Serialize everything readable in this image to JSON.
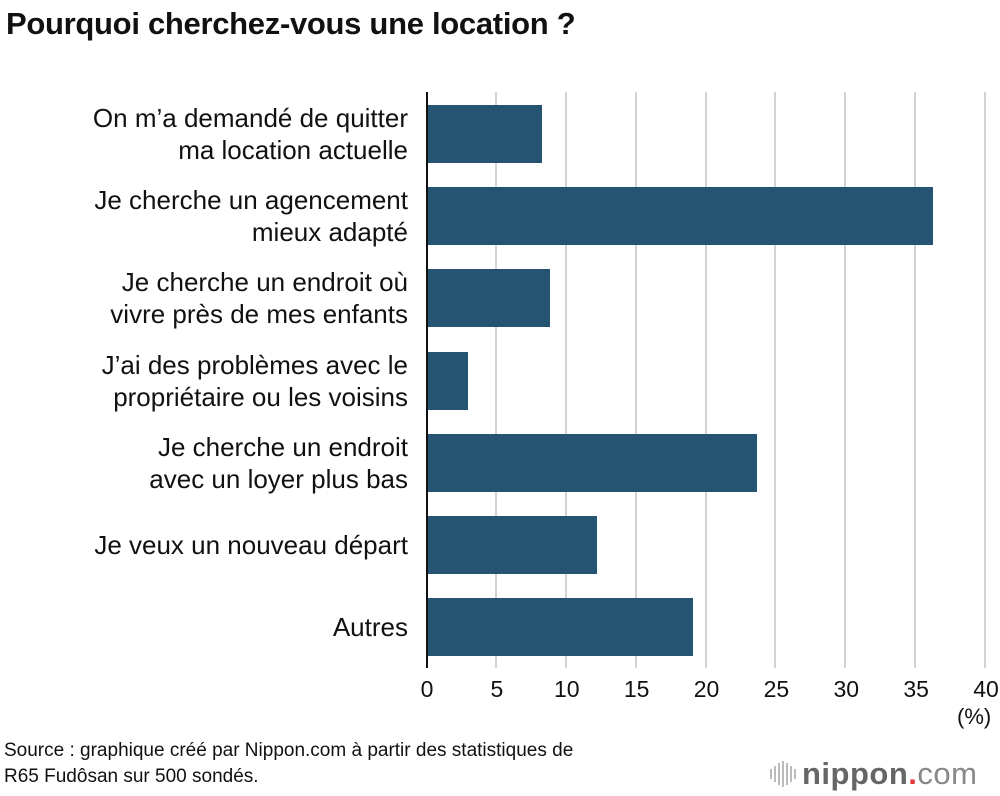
{
  "title": "Pourquoi cherchez-vous une location ?",
  "source_line1": "Source : graphique créé par Nippon.com à partir des statistiques de",
  "source_line2": "R65 Fudôsan sur 500 sondés.",
  "logo": {
    "word": "nippon",
    "dot": ".",
    "com": "com"
  },
  "colors": {
    "bar": "#245472",
    "grid": "#d3d3d3",
    "logo_dot": "#e53935"
  },
  "chart_data": {
    "type": "bar",
    "orientation": "horizontal",
    "title": "Pourquoi cherchez-vous une location ?",
    "categories": [
      "On m’a demandé de quitter ma location actuelle",
      "Je cherche un agencement mieux adapté",
      "Je cherche un endroit où vivre près de mes enfants",
      "J’ai des problèmes avec le propriétaire ou les voisins",
      "Je cherche un endroit avec un loyer plus bas",
      "Je veux un nouveau départ",
      "Autres"
    ],
    "category_lines": [
      [
        "On m’a demandé de quitter",
        "ma location actuelle"
      ],
      [
        "Je cherche un agencement",
        "mieux adapté"
      ],
      [
        "Je cherche un endroit où",
        "vivre près de mes enfants"
      ],
      [
        "J’ai des problèmes avec le",
        "propriétaire ou les voisins"
      ],
      [
        "Je cherche un endroit",
        "avec un loyer plus bas"
      ],
      [
        "Je veux un nouveau départ"
      ],
      [
        "Autres"
      ]
    ],
    "values": [
      8.2,
      36.2,
      8.8,
      2.9,
      23.6,
      12.2,
      19.0
    ],
    "xlabel": "(%)",
    "ylabel": "",
    "xlim": [
      0,
      40
    ],
    "xticks": [
      "0",
      "5",
      "10",
      "15",
      "20",
      "25",
      "30",
      "35",
      "40"
    ],
    "grid": true,
    "legend": null
  }
}
